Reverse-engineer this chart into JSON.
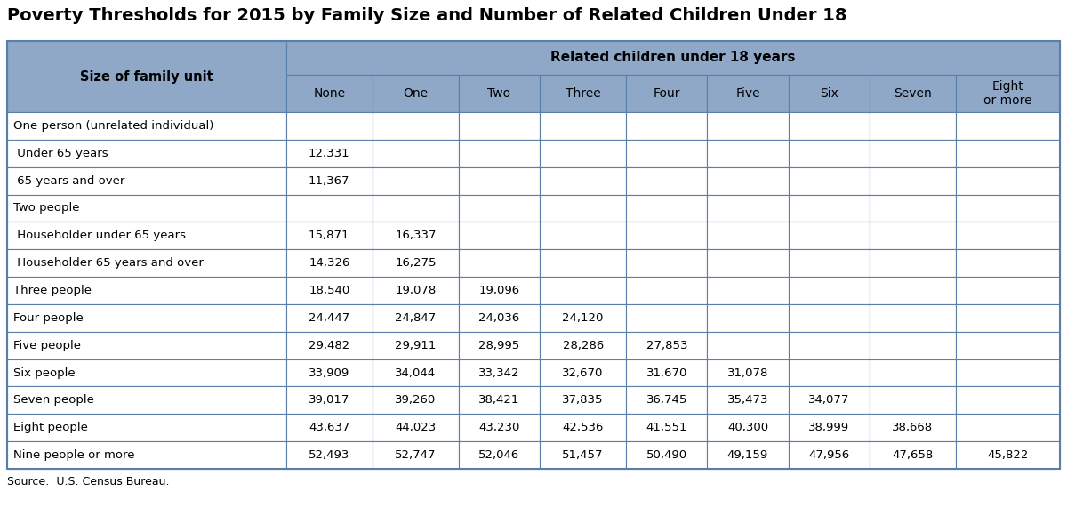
{
  "title": "Poverty Thresholds for 2015 by Family Size and Number of Related Children Under 18",
  "source": "Source:  U.S. Census Bureau.",
  "header_main": "Related children under 18 years",
  "col_header_left": "Size of family unit",
  "col_headers": [
    "None",
    "One",
    "Two",
    "Three",
    "Four",
    "Five",
    "Six",
    "Seven",
    "Eight\nor more"
  ],
  "rows": [
    {
      "label": "One person (unrelated individual)",
      "indent": 0,
      "values": [
        "",
        "",
        "",
        "",
        "",
        "",
        "",
        "",
        ""
      ]
    },
    {
      "label": " Under 65 years",
      "indent": 1,
      "values": [
        "12,331",
        "",
        "",
        "",
        "",
        "",
        "",
        "",
        ""
      ]
    },
    {
      "label": " 65 years and over",
      "indent": 1,
      "values": [
        "11,367",
        "",
        "",
        "",
        "",
        "",
        "",
        "",
        ""
      ]
    },
    {
      "label": "Two people",
      "indent": 0,
      "values": [
        "",
        "",
        "",
        "",
        "",
        "",
        "",
        "",
        ""
      ]
    },
    {
      "label": " Householder under 65 years",
      "indent": 1,
      "values": [
        "15,871",
        "16,337",
        "",
        "",
        "",
        "",
        "",
        "",
        ""
      ]
    },
    {
      "label": " Householder 65 years and over",
      "indent": 1,
      "values": [
        "14,326",
        "16,275",
        "",
        "",
        "",
        "",
        "",
        "",
        ""
      ]
    },
    {
      "label": "Three people",
      "indent": 0,
      "values": [
        "18,540",
        "19,078",
        "19,096",
        "",
        "",
        "",
        "",
        "",
        ""
      ]
    },
    {
      "label": "Four people",
      "indent": 0,
      "values": [
        "24,447",
        "24,847",
        "24,036",
        "24,120",
        "",
        "",
        "",
        "",
        ""
      ]
    },
    {
      "label": "Five people",
      "indent": 0,
      "values": [
        "29,482",
        "29,911",
        "28,995",
        "28,286",
        "27,853",
        "",
        "",
        "",
        ""
      ]
    },
    {
      "label": "Six people",
      "indent": 0,
      "values": [
        "33,909",
        "34,044",
        "33,342",
        "32,670",
        "31,670",
        "31,078",
        "",
        "",
        ""
      ]
    },
    {
      "label": "Seven people",
      "indent": 0,
      "values": [
        "39,017",
        "39,260",
        "38,421",
        "37,835",
        "36,745",
        "35,473",
        "34,077",
        "",
        ""
      ]
    },
    {
      "label": "Eight people",
      "indent": 0,
      "values": [
        "43,637",
        "44,023",
        "43,230",
        "42,536",
        "41,551",
        "40,300",
        "38,999",
        "38,668",
        ""
      ]
    },
    {
      "label": "Nine people or more",
      "indent": 0,
      "values": [
        "52,493",
        "52,747",
        "52,046",
        "51,457",
        "50,490",
        "49,159",
        "47,956",
        "47,658",
        "45,822"
      ]
    }
  ],
  "header_bg": "#8FA8C8",
  "white": "#FFFFFF",
  "border_color": "#5A7FA8",
  "title_fontsize": 14,
  "header_fontsize": 10.5,
  "subheader_fontsize": 10,
  "data_fontsize": 9.5,
  "source_fontsize": 9
}
